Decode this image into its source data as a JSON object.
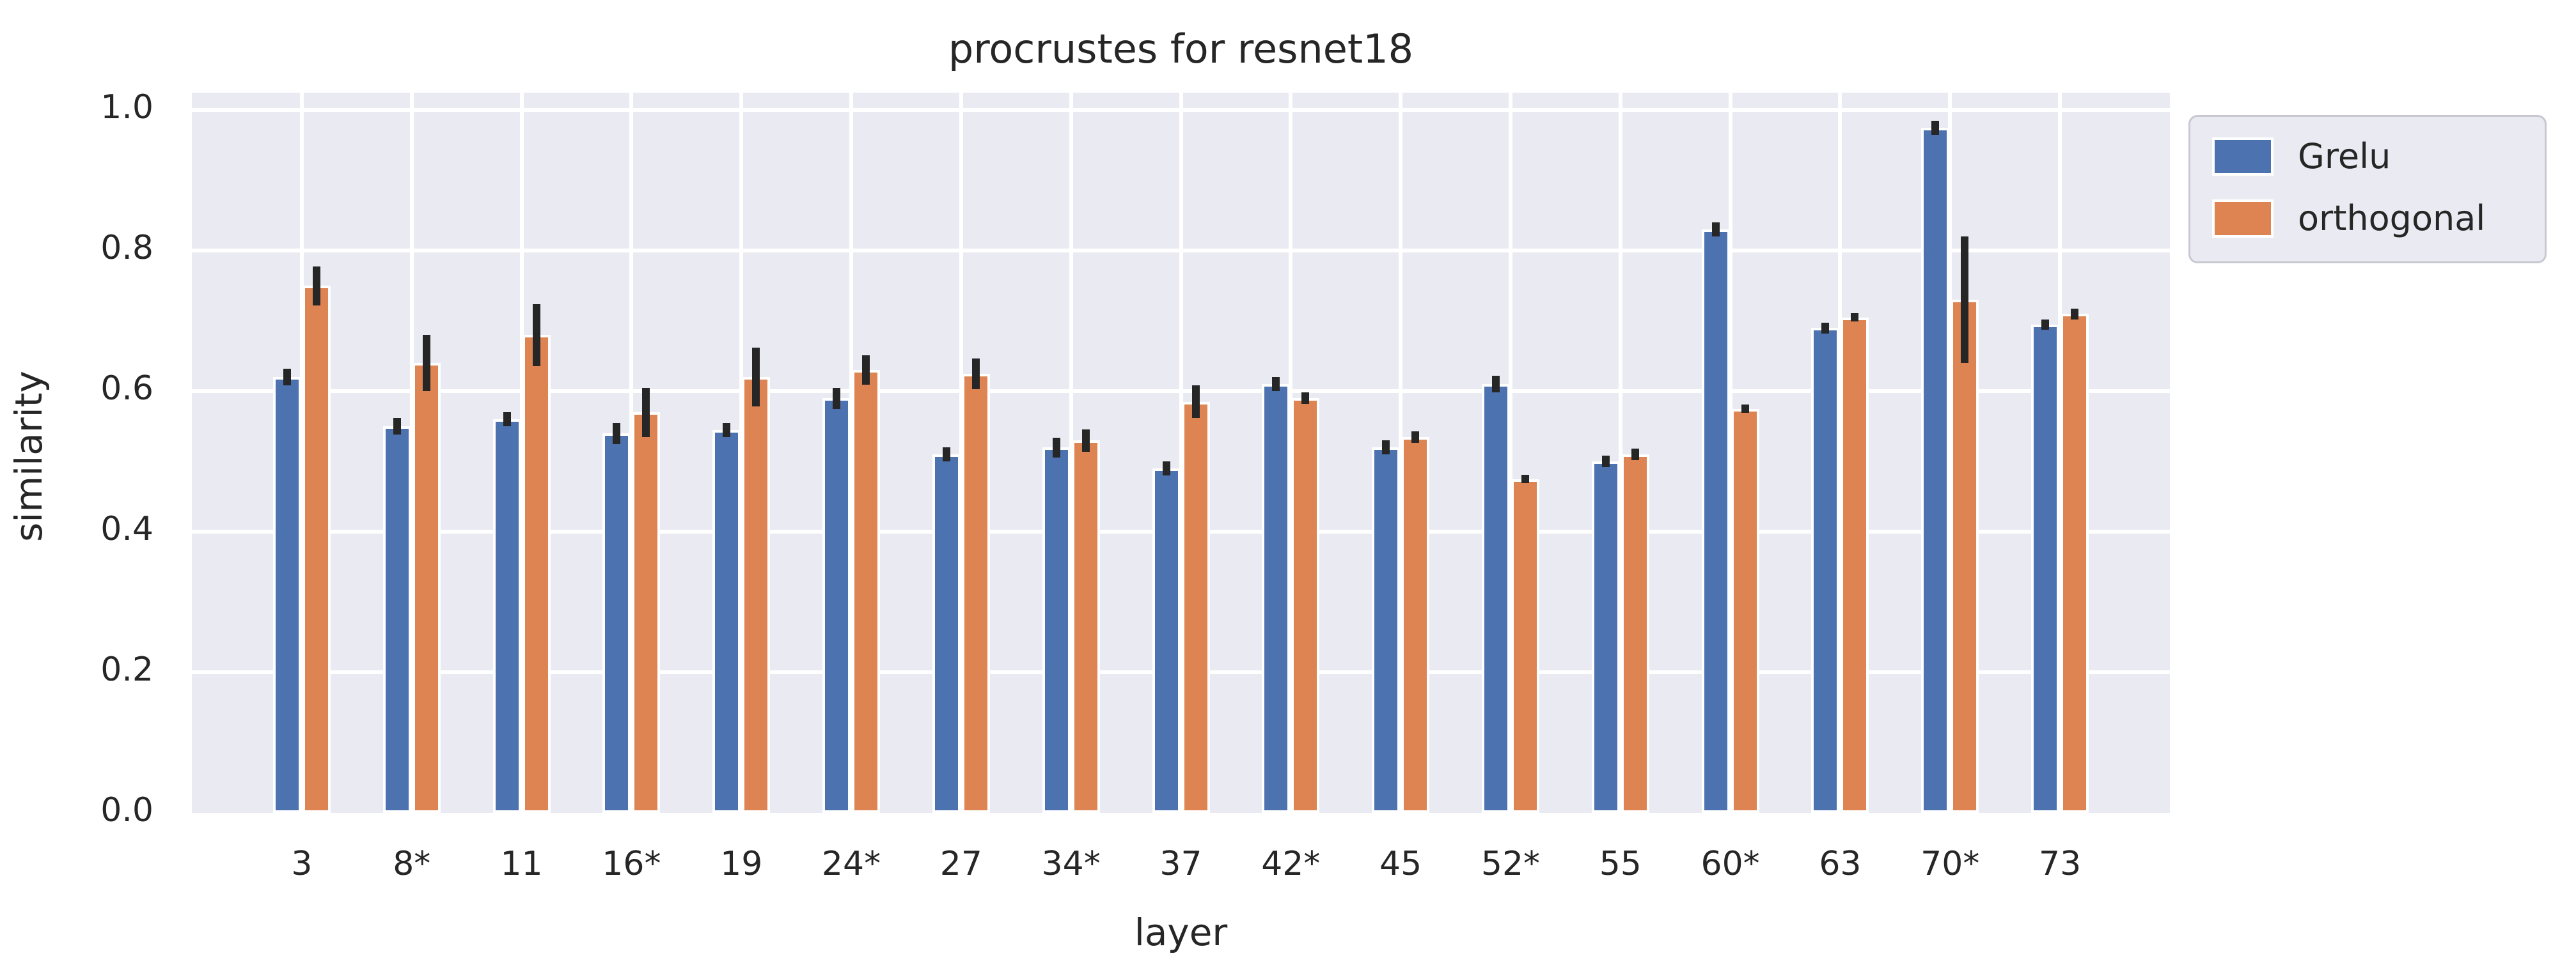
{
  "title": "procrustes for resnet18",
  "axes": {
    "xlabel": "layer",
    "ylabel": "similarity"
  },
  "legend": {
    "items": [
      {
        "label": "Grelu",
        "color": "#4C72B0"
      },
      {
        "label": "orthogonal",
        "color": "#DD8452"
      }
    ]
  },
  "chart_data": {
    "type": "bar",
    "title": "procrustes for resnet18",
    "xlabel": "layer",
    "ylabel": "similarity",
    "categories": [
      "3",
      "8*",
      "11",
      "16*",
      "19",
      "24*",
      "27",
      "34*",
      "37",
      "42*",
      "45",
      "52*",
      "55",
      "60*",
      "63",
      "70*",
      "73"
    ],
    "series": [
      {
        "name": "Grelu",
        "color": "#4C72B0",
        "values": [
          0.62,
          0.55,
          0.56,
          0.54,
          0.545,
          0.59,
          0.51,
          0.52,
          0.49,
          0.61,
          0.52,
          0.61,
          0.5,
          0.83,
          0.69,
          0.975,
          0.695
        ],
        "errors": [
          0.012,
          0.012,
          0.01,
          0.015,
          0.01,
          0.015,
          0.01,
          0.014,
          0.01,
          0.01,
          0.01,
          0.012,
          0.008,
          0.01,
          0.008,
          0.01,
          0.007
        ]
      },
      {
        "name": "orthogonal",
        "color": "#DD8452",
        "values": [
          0.75,
          0.64,
          0.68,
          0.57,
          0.62,
          0.63,
          0.625,
          0.53,
          0.585,
          0.59,
          0.535,
          0.475,
          0.51,
          0.575,
          0.705,
          0.73,
          0.71
        ],
        "errors": [
          0.028,
          0.04,
          0.044,
          0.035,
          0.042,
          0.021,
          0.022,
          0.016,
          0.023,
          0.008,
          0.008,
          0.006,
          0.008,
          0.006,
          0.006,
          0.09,
          0.008
        ]
      }
    ],
    "ylim": [
      0,
      1.025
    ],
    "yticks": [
      0.0,
      0.2,
      0.4,
      0.6,
      0.8,
      1.0
    ],
    "ytick_labels": [
      "0.0",
      "0.2",
      "0.4",
      "0.6",
      "0.8",
      "1.0"
    ],
    "grid": true,
    "grid_color": "#ffffff",
    "background": "#EAEAF2",
    "errorbar_color": "#262626",
    "legend_position": "outside upper right"
  }
}
